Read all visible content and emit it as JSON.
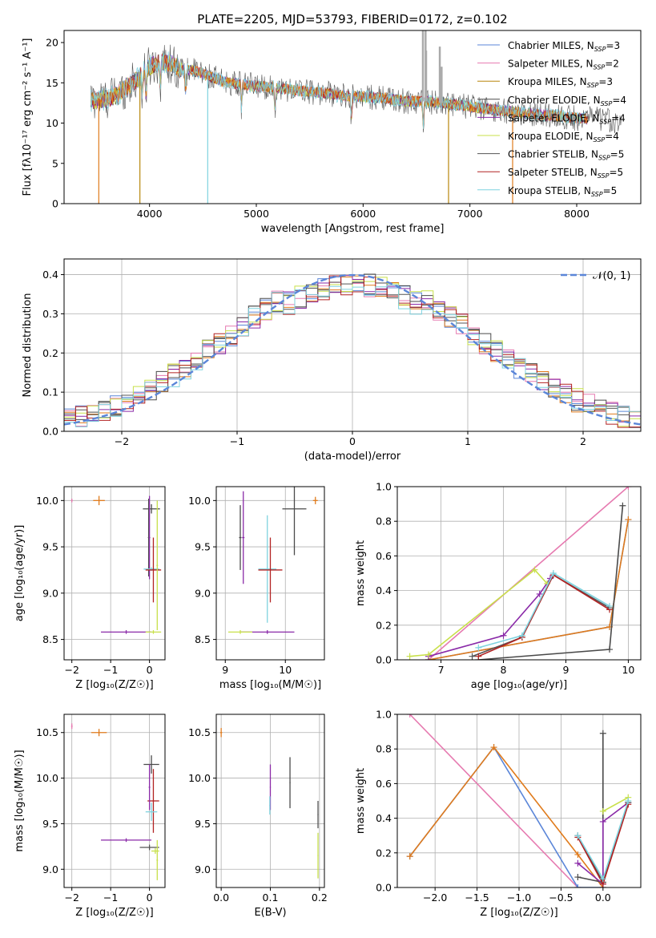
{
  "figure_title": "PLATE=2205, MJD=53793, FIBERID=0172, z=0.102",
  "colors": {
    "Chabrier MILES": "#5b86d8",
    "Salpeter MILES": "#e67ab0",
    "Kroupa MILES": "#b8860b",
    "Chabrier ELODIE": "#4a4a4a",
    "Salpeter ELODIE": "#8a2aa8",
    "Kroupa ELODIE": "#c8e04a",
    "Chabrier STELIB": "#555555",
    "Salpeter STELIB": "#b22222",
    "Kroupa STELIB": "#7fd3df",
    "orange": "#e07b1c",
    "gaussian": "#5b86d8"
  },
  "chart_data": [
    {
      "id": "spectrum",
      "type": "line",
      "title": "PLATE=2205, MJD=53793, FIBERID=0172, z=0.102",
      "xlabel": "wavelength [Angstrom, rest frame]",
      "ylabel": "Flux [fλ10⁻¹⁷ erg cm⁻² s⁻¹ A⁻¹]",
      "xlim": [
        3200,
        8600
      ],
      "ylim": [
        0,
        21.5
      ],
      "xticks": [
        4000,
        5000,
        6000,
        7000,
        8000
      ],
      "yticks": [
        0,
        5,
        10,
        15,
        20
      ],
      "legend": "top-right",
      "legend_entries": [
        {
          "label": "Chabrier MILES, N",
          "sub": "SSP",
          "tail": "=3",
          "color": "#5b86d8"
        },
        {
          "label": "Salpeter MILES, N",
          "sub": "SSP",
          "tail": "=2",
          "color": "#e67ab0"
        },
        {
          "label": "Kroupa MILES, N",
          "sub": "SSP",
          "tail": "=3",
          "color": "#b8860b"
        },
        {
          "label": "Chabrier ELODIE, N",
          "sub": "SSP",
          "tail": "=4",
          "color": "#4a4a4a"
        },
        {
          "label": "Salpeter ELODIE, N",
          "sub": "SSP",
          "tail": "=4",
          "color": "#8a2aa8"
        },
        {
          "label": "Kroupa ELODIE, N",
          "sub": "SSP",
          "tail": "=4",
          "color": "#c8e04a"
        },
        {
          "label": "Chabrier STELIB, N",
          "sub": "SSP",
          "tail": "=5",
          "color": "#555555"
        },
        {
          "label": "Salpeter STELIB, N",
          "sub": "SSP",
          "tail": "=5",
          "color": "#b22222"
        },
        {
          "label": "Kroupa STELIB, N",
          "sub": "SSP",
          "tail": "=5",
          "color": "#7fd3df"
        }
      ],
      "continuum": [
        [
          3450,
          12.8
        ],
        [
          3600,
          13.0
        ],
        [
          3700,
          13.6
        ],
        [
          3800,
          14.6
        ],
        [
          3900,
          15.6
        ],
        [
          4000,
          17.0
        ],
        [
          4100,
          17.6
        ],
        [
          4200,
          17.4
        ],
        [
          4300,
          16.6
        ],
        [
          4400,
          16.6
        ],
        [
          4500,
          16.1
        ],
        [
          4600,
          15.6
        ],
        [
          4700,
          15.1
        ],
        [
          4800,
          14.9
        ],
        [
          5000,
          14.6
        ],
        [
          5200,
          14.4
        ],
        [
          5400,
          14.0
        ],
        [
          5600,
          13.8
        ],
        [
          5800,
          13.4
        ],
        [
          6000,
          13.3
        ],
        [
          6200,
          13.1
        ],
        [
          6400,
          12.7
        ],
        [
          6600,
          12.7
        ],
        [
          6800,
          12.4
        ],
        [
          7000,
          12.0
        ],
        [
          7200,
          11.7
        ],
        [
          7400,
          11.4
        ],
        [
          7600,
          11.1
        ],
        [
          7800,
          10.9
        ],
        [
          8000,
          10.6
        ],
        [
          8200,
          10.5
        ],
        [
          8400,
          10.3
        ]
      ],
      "dropouts": [
        {
          "color": "#e07b1c",
          "x": 3525
        },
        {
          "color": "#b8860b",
          "x": 3910
        },
        {
          "color": "#7fd3df",
          "x": 4545
        },
        {
          "color": "#b8860b",
          "x": 6800
        },
        {
          "color": "#e07b1c",
          "x": 7400
        }
      ]
    },
    {
      "id": "residuals",
      "type": "histogram",
      "xlabel": "(data-model)/error",
      "ylabel": "Normed distribution",
      "xlim": [
        -2.5,
        2.5
      ],
      "ylim": [
        0,
        0.44
      ],
      "xticks": [
        -2,
        -1,
        0,
        1,
        2
      ],
      "yticks": [
        0,
        0.1,
        0.2,
        0.3,
        0.4
      ],
      "legend": "top-right",
      "gaussian_label": "𝒩(0, 1)",
      "bins": 50
    },
    {
      "id": "age_vs_Z",
      "type": "scatter",
      "xlabel": "Z [log₁₀(Z/Z☉)]",
      "ylabel": "age  [log₁₀(age/yr)]",
      "xlim": [
        -2.2,
        0.4
      ],
      "ylim": [
        8.28,
        10.15
      ],
      "xticks": [
        -2,
        -1,
        0
      ],
      "yticks": [
        8.5,
        9.0,
        9.5,
        10.0
      ],
      "points": [
        {
          "x": -2.0,
          "y": 10.0,
          "xerr": 0.02,
          "yerr": 0.02,
          "color": "#e67ab0"
        },
        {
          "x": -1.3,
          "y": 10.0,
          "xerr": 0.15,
          "yerr": 0.05,
          "color": "#e07b1c"
        },
        {
          "x": 0.05,
          "y": 9.91,
          "xerr": 0.22,
          "yerr": 0.05,
          "color": "#4a4a4a"
        },
        {
          "x": -0.02,
          "y": 9.6,
          "xerr": 0.02,
          "yerr": 0.42,
          "color": "#4a4a4a"
        },
        {
          "x": 0.0,
          "y": 9.6,
          "xerr": 0.02,
          "yerr": 0.45,
          "color": "#8a2aa8"
        },
        {
          "x": 0.05,
          "y": 9.26,
          "xerr": 0.2,
          "yerr": 0.02,
          "color": "#7fd3df"
        },
        {
          "x": 0.1,
          "y": 9.25,
          "xerr": 0.2,
          "yerr": 0.35,
          "color": "#b22222"
        },
        {
          "x": -0.6,
          "y": 8.58,
          "xerr": 0.65,
          "yerr": 0.02,
          "color": "#8a2aa8"
        },
        {
          "x": 0.1,
          "y": 8.58,
          "xerr": 0.2,
          "yerr": 0.02,
          "color": "#c8e04a"
        },
        {
          "x": 0.2,
          "y": 9.3,
          "xerr": 0.02,
          "yerr": 0.7,
          "color": "#c8e04a"
        }
      ]
    },
    {
      "id": "age_vs_mass",
      "type": "scatter",
      "xlabel": "mass [log₁₀(M/M☉)]",
      "ylabel": "",
      "xlim": [
        8.85,
        10.65
      ],
      "ylim": [
        8.28,
        10.15
      ],
      "xticks": [
        9,
        10
      ],
      "yticks": [
        8.5,
        9.0,
        9.5,
        10.0
      ],
      "points": [
        {
          "x": 10.5,
          "y": 10.0,
          "xerr": 0.04,
          "yerr": 0.04,
          "color": "#e07b1c"
        },
        {
          "x": 10.15,
          "y": 9.91,
          "xerr": 0.2,
          "yerr": 0.5,
          "color": "#4a4a4a"
        },
        {
          "x": 9.3,
          "y": 9.6,
          "xerr": 0.02,
          "yerr": 0.5,
          "color": "#8a2aa8"
        },
        {
          "x": 9.25,
          "y": 9.6,
          "xerr": 0.02,
          "yerr": 0.35,
          "color": "#4a4a4a"
        },
        {
          "x": 9.7,
          "y": 9.26,
          "xerr": 0.15,
          "yerr": 0.58,
          "color": "#7fd3df"
        },
        {
          "x": 9.75,
          "y": 9.25,
          "xerr": 0.2,
          "yerr": 0.35,
          "color": "#b22222"
        },
        {
          "x": 9.7,
          "y": 8.58,
          "xerr": 0.45,
          "yerr": 0.02,
          "color": "#8a2aa8"
        },
        {
          "x": 9.25,
          "y": 8.58,
          "xerr": 0.2,
          "yerr": 0.02,
          "color": "#c8e04a"
        }
      ]
    },
    {
      "id": "weight_vs_age",
      "type": "line",
      "xlabel": "age  [log₁₀(age/yr)]",
      "ylabel": "mass weight",
      "xlim": [
        6.3,
        10.2
      ],
      "ylim": [
        0,
        1.0
      ],
      "xticks": [
        7,
        8,
        9,
        10
      ],
      "yticks": [
        0.0,
        0.2,
        0.4,
        0.6,
        0.8,
        1.0
      ],
      "series": [
        {
          "color": "#e67ab0",
          "x": [
            6.8,
            10.0
          ],
          "y": [
            0.0,
            1.0
          ]
        },
        {
          "color": "#5b86d8",
          "x": [
            6.8,
            9.7,
            10.0
          ],
          "y": [
            0.0,
            0.19,
            0.81
          ]
        },
        {
          "color": "#e07b1c",
          "x": [
            6.8,
            9.7,
            10.0
          ],
          "y": [
            0.0,
            0.19,
            0.81
          ]
        },
        {
          "color": "#4a4a4a",
          "x": [
            7.6,
            9.7,
            9.91
          ],
          "y": [
            0.0,
            0.06,
            0.89
          ]
        },
        {
          "color": "#8a2aa8",
          "x": [
            6.8,
            8.0,
            8.58,
            8.75
          ],
          "y": [
            0.02,
            0.14,
            0.38,
            0.47
          ]
        },
        {
          "color": "#c8e04a",
          "x": [
            6.5,
            6.8,
            8.5,
            8.7
          ],
          "y": [
            0.02,
            0.03,
            0.52,
            0.44
          ]
        },
        {
          "color": "#555555",
          "x": [
            7.5,
            8.3,
            8.8,
            9.7
          ],
          "y": [
            0.02,
            0.13,
            0.49,
            0.3
          ]
        },
        {
          "color": "#b22222",
          "x": [
            7.6,
            8.3,
            8.8,
            9.7
          ],
          "y": [
            0.02,
            0.13,
            0.49,
            0.29
          ]
        },
        {
          "color": "#7fd3df",
          "x": [
            7.6,
            8.3,
            8.8,
            9.7
          ],
          "y": [
            0.07,
            0.14,
            0.5,
            0.31
          ]
        }
      ]
    },
    {
      "id": "mass_vs_Z",
      "type": "scatter",
      "xlabel": "Z [log₁₀(Z/Z☉)]",
      "ylabel": "mass [log₁₀(M/M☉)]",
      "xlim": [
        -2.2,
        0.4
      ],
      "ylim": [
        8.8,
        10.7
      ],
      "xticks": [
        -2,
        -1,
        0
      ],
      "yticks": [
        9.0,
        9.5,
        10.0,
        10.5
      ],
      "points": [
        {
          "x": -2.0,
          "y": 10.57,
          "xerr": 0.02,
          "yerr": 0.03,
          "color": "#e67ab0"
        },
        {
          "x": -1.3,
          "y": 10.5,
          "xerr": 0.2,
          "yerr": 0.04,
          "color": "#e07b1c"
        },
        {
          "x": 0.05,
          "y": 10.15,
          "xerr": 0.2,
          "yerr": 0.1,
          "color": "#4a4a4a"
        },
        {
          "x": 0.1,
          "y": 9.75,
          "xerr": 0.15,
          "yerr": 0.35,
          "color": "#b22222"
        },
        {
          "x": 0.0,
          "y": 9.9,
          "xerr": 0.02,
          "yerr": 0.25,
          "color": "#8a2aa8"
        },
        {
          "x": 0.05,
          "y": 9.63,
          "xerr": 0.15,
          "yerr": 0.1,
          "color": "#7fd3df"
        },
        {
          "x": -0.6,
          "y": 9.32,
          "xerr": 0.65,
          "yerr": 0.02,
          "color": "#8a2aa8"
        },
        {
          "x": 0.0,
          "y": 9.24,
          "xerr": 0.25,
          "yerr": 0.03,
          "color": "#555555"
        },
        {
          "x": 0.15,
          "y": 9.2,
          "xerr": 0.1,
          "yerr": 0.03,
          "color": "#c8e04a"
        },
        {
          "x": 0.2,
          "y": 9.1,
          "xerr": 0.02,
          "yerr": 0.22,
          "color": "#c8e04a"
        }
      ]
    },
    {
      "id": "mass_vs_ebv",
      "type": "scatter",
      "xlabel": "E(B-V)",
      "ylabel": "",
      "xlim": [
        -0.01,
        0.21
      ],
      "ylim": [
        8.8,
        10.7
      ],
      "xticks": [
        0.0,
        0.1,
        0.2
      ],
      "yticks": [
        9.0,
        9.5,
        10.0,
        10.5
      ],
      "points": [
        {
          "x": 0.0,
          "y": 10.5,
          "xerr": 0.002,
          "yerr": 0.05,
          "color": "#e07b1c"
        },
        {
          "x": 0.1,
          "y": 9.9,
          "xerr": 0.001,
          "yerr": 0.25,
          "color": "#8a2aa8"
        },
        {
          "x": 0.099,
          "y": 9.7,
          "xerr": 0.001,
          "yerr": 0.1,
          "color": "#7fd3df"
        },
        {
          "x": 0.14,
          "y": 9.95,
          "xerr": 0.001,
          "yerr": 0.28,
          "color": "#4a4a4a"
        },
        {
          "x": 0.197,
          "y": 9.6,
          "xerr": 0.001,
          "yerr": 0.15,
          "color": "#555555"
        },
        {
          "x": 0.197,
          "y": 9.15,
          "xerr": 0.001,
          "yerr": 0.25,
          "color": "#c8e04a"
        }
      ]
    },
    {
      "id": "weight_vs_Z",
      "type": "line",
      "xlabel": "Z [log₁₀(Z/Z☉)]",
      "ylabel": "mass weight",
      "xlim": [
        -2.45,
        0.45
      ],
      "ylim": [
        0,
        1.0
      ],
      "xticks": [
        -2.0,
        -1.5,
        -1.0,
        -0.5,
        0.0
      ],
      "yticks": [
        0.0,
        0.2,
        0.4,
        0.6,
        0.8,
        1.0
      ],
      "series": [
        {
          "color": "#e67ab0",
          "x": [
            -2.3,
            -0.3
          ],
          "y": [
            1.0,
            0.0
          ]
        },
        {
          "color": "#5b86d8",
          "x": [
            -2.3,
            -1.3,
            -0.3,
            0.0
          ],
          "y": [
            0.18,
            0.81,
            0.0,
            0.0
          ]
        },
        {
          "color": "#e07b1c",
          "x": [
            -2.3,
            -1.3,
            -0.3,
            0.0
          ],
          "y": [
            0.18,
            0.81,
            0.19,
            0.0
          ]
        },
        {
          "color": "#4a4a4a",
          "x": [
            -0.3,
            0.0,
            0.0
          ],
          "y": [
            0.06,
            0.03,
            0.89
          ]
        },
        {
          "color": "#8a2aa8",
          "x": [
            -0.3,
            0.0,
            0.0,
            0.3
          ],
          "y": [
            0.14,
            0.02,
            0.38,
            0.49
          ]
        },
        {
          "color": "#c8e04a",
          "x": [
            0.0,
            0.3
          ],
          "y": [
            0.44,
            0.52
          ]
        },
        {
          "color": "#555555",
          "x": [
            -0.3,
            0.0,
            0.3
          ],
          "y": [
            0.3,
            0.03,
            0.49
          ]
        },
        {
          "color": "#b22222",
          "x": [
            -0.3,
            0.0,
            0.3
          ],
          "y": [
            0.29,
            0.02,
            0.48
          ]
        },
        {
          "color": "#7fd3df",
          "x": [
            -0.3,
            0.0,
            0.3
          ],
          "y": [
            0.3,
            0.05,
            0.5
          ]
        }
      ]
    }
  ]
}
